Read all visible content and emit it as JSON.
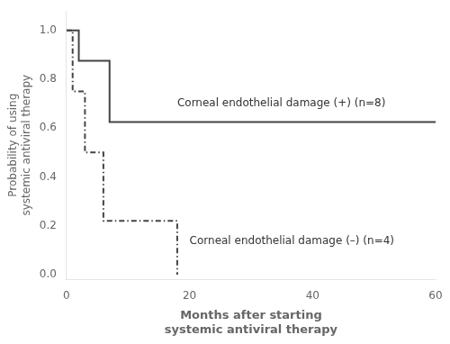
{
  "chart_data": {
    "type": "line",
    "xlabel": "Months after starting\nsystemic antiviral therapy",
    "ylabel": "Probability of using\nsystemic antiviral therapy",
    "xlim": [
      0,
      60
    ],
    "ylim": [
      -0.02,
      1.08
    ],
    "xticks": [
      0,
      20,
      40,
      60
    ],
    "yticks": [
      {
        "value": 0,
        "label": "0.0"
      },
      0.2,
      0.4,
      0.6,
      0.8,
      {
        "value": 1.0,
        "label": "1.0"
      }
    ],
    "grid": false,
    "series": [
      {
        "x": [
          0,
          2,
          2,
          7,
          7,
          60
        ],
        "values": [
          1.0,
          1.0,
          0.875,
          0.875,
          0.625,
          0.625
        ],
        "color": "#444444",
        "line_style": "solid"
      },
      {
        "x": [
          0,
          1,
          1,
          3,
          3,
          6,
          6,
          18,
          18
        ],
        "values": [
          1.0,
          1.0,
          0.75,
          0.75,
          0.5,
          0.5,
          0.22,
          0.22,
          0.0
        ],
        "color": "#444444",
        "line_style": "dashdot"
      }
    ],
    "annotations": [
      {
        "text": "Corneal endothelial damage (+) (n=8)",
        "x": 18,
        "y": 0.68
      },
      {
        "text": "Corneal endothelial damage (–) (n=4)",
        "x": 20,
        "y": 0.115
      }
    ]
  }
}
